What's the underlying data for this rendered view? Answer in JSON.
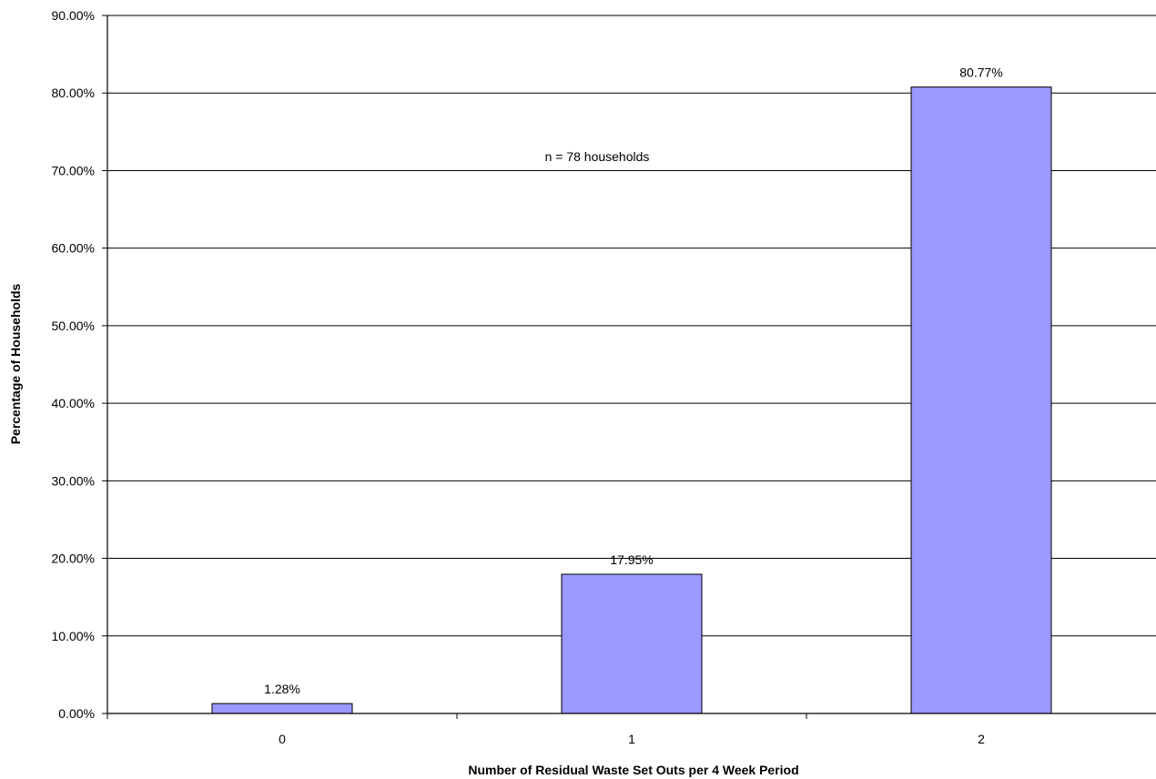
{
  "chart_data": {
    "type": "bar",
    "categories": [
      "0",
      "1",
      "2"
    ],
    "values": [
      1.28,
      17.95,
      80.77
    ],
    "data_labels": [
      "1.28%",
      "17.95%",
      "80.77%"
    ],
    "title": "",
    "xlabel": "Number of Residual Waste Set Outs per 4 Week Period",
    "ylabel": "Percentage of Households",
    "ylim": [
      0,
      90
    ],
    "yticks": [
      0,
      10,
      20,
      30,
      40,
      50,
      60,
      70,
      80,
      90
    ],
    "ytick_labels": [
      "0.00%",
      "10.00%",
      "20.00%",
      "30.00%",
      "40.00%",
      "50.00%",
      "60.00%",
      "70.00%",
      "80.00%",
      "90.00%"
    ],
    "annotation": "n = 78 households",
    "grid": true,
    "legend": "none",
    "bar_color": "#9999ff"
  }
}
